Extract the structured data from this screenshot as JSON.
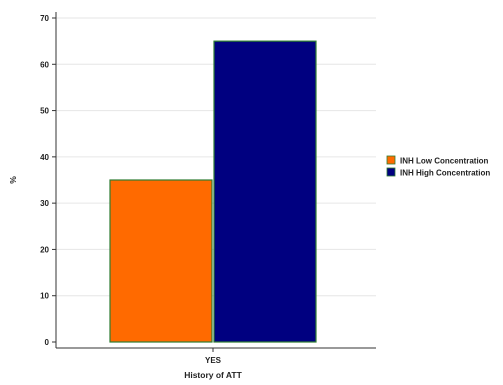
{
  "chart_data": {
    "type": "bar",
    "categories": [
      "YES"
    ],
    "series": [
      {
        "name": "INH Low Concentration",
        "values": [
          35
        ],
        "color": "#FF6A00"
      },
      {
        "name": "INH High Concentration",
        "values": [
          65
        ],
        "color": "#000080"
      }
    ],
    "title": "",
    "xlabel": "History of ATT",
    "ylabel": "%",
    "ylim": [
      0,
      70
    ],
    "yticks": [
      0,
      10,
      20,
      30,
      40,
      50,
      60,
      70
    ],
    "grid": true,
    "legend_position": "right",
    "bar_edge_color": "#2E7D32"
  }
}
